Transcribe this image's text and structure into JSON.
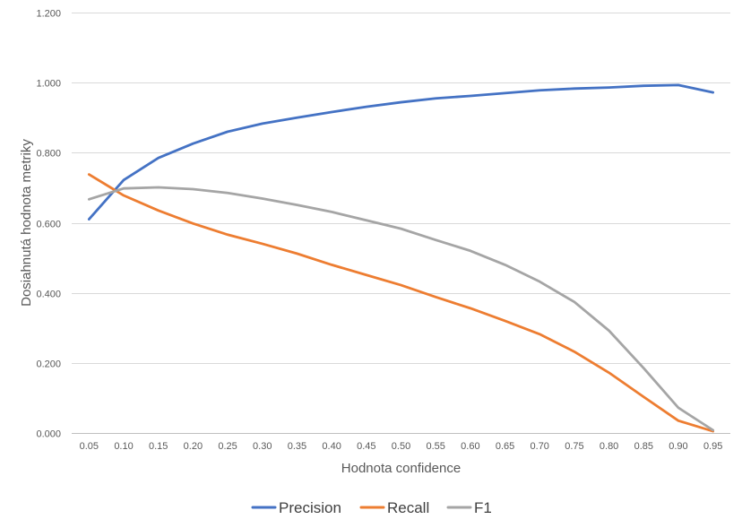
{
  "chart_data": {
    "type": "line",
    "title": "",
    "xlabel": "Hodnota confidence",
    "ylabel": "Dosiahnutá hodnota metriky",
    "categories": [
      "0.05",
      "0.10",
      "0.15",
      "0.20",
      "0.25",
      "0.30",
      "0.35",
      "0.40",
      "0.45",
      "0.50",
      "0.55",
      "0.60",
      "0.65",
      "0.70",
      "0.75",
      "0.80",
      "0.85",
      "0.90",
      "0.95"
    ],
    "y_ticks": [
      "0.000",
      "0.200",
      "0.400",
      "0.600",
      "0.800",
      "1.000",
      "1.200"
    ],
    "ylim": [
      0,
      1.2
    ],
    "grid": "horizontal",
    "legend_position": "bottom",
    "series": [
      {
        "name": "Precision",
        "color": "#4472C4",
        "values": [
          0.61,
          0.722,
          0.785,
          0.826,
          0.86,
          0.883,
          0.9,
          0.916,
          0.931,
          0.944,
          0.955,
          0.962,
          0.97,
          0.978,
          0.983,
          0.986,
          0.991,
          0.993,
          0.972
        ]
      },
      {
        "name": "Recall",
        "color": "#ED7D31",
        "values": [
          0.738,
          0.678,
          0.635,
          0.598,
          0.566,
          0.54,
          0.512,
          0.48,
          0.451,
          0.422,
          0.388,
          0.356,
          0.32,
          0.282,
          0.232,
          0.172,
          0.103,
          0.035,
          0.005
        ]
      },
      {
        "name": "F1",
        "color": "#A5A5A5",
        "values": [
          0.667,
          0.698,
          0.701,
          0.696,
          0.685,
          0.669,
          0.651,
          0.631,
          0.607,
          0.583,
          0.551,
          0.52,
          0.48,
          0.432,
          0.374,
          0.292,
          0.185,
          0.072,
          0.008
        ]
      }
    ]
  }
}
